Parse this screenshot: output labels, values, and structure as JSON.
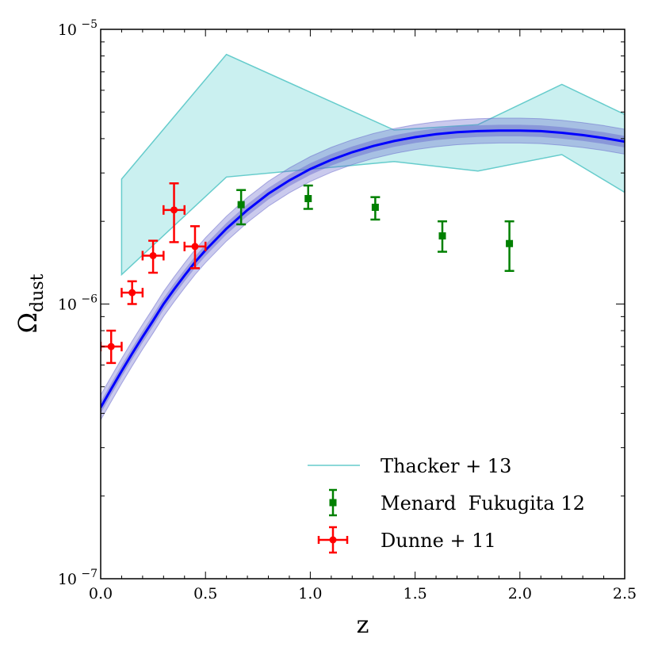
{
  "chart_data": {
    "type": "scatter",
    "title": "",
    "xlabel": "z",
    "ylabel": {
      "main": "Ω",
      "sub": "dust"
    },
    "xscale": "linear",
    "yscale": "log",
    "xlim": [
      0,
      2.5
    ],
    "ylim": [
      1e-07,
      1e-05
    ],
    "xticks": [
      {
        "value": 0.0,
        "label": "0.0"
      },
      {
        "value": 0.5,
        "label": "0.5"
      },
      {
        "value": 1.0,
        "label": "1.0"
      },
      {
        "value": 1.5,
        "label": "1.5"
      },
      {
        "value": 2.0,
        "label": "2.0"
      },
      {
        "value": 2.5,
        "label": "2.5"
      }
    ],
    "yticks": [
      {
        "value": 1e-07,
        "base": "10",
        "exp": "−7"
      },
      {
        "value": 1e-06,
        "base": "10",
        "exp": "−6"
      },
      {
        "value": 1e-05,
        "base": "10",
        "exp": "−5"
      }
    ],
    "model": {
      "color": "#0000ff",
      "band_color": "#6666cc",
      "z": [
        0.0,
        0.05,
        0.1,
        0.15,
        0.2,
        0.25,
        0.3,
        0.35,
        0.4,
        0.45,
        0.5,
        0.6,
        0.7,
        0.8,
        0.9,
        1.0,
        1.1,
        1.2,
        1.3,
        1.4,
        1.5,
        1.6,
        1.7,
        1.8,
        1.9,
        2.0,
        2.1,
        2.2,
        2.3,
        2.4,
        2.5
      ],
      "median": [
        4.2e-07,
        4.9e-07,
        5.7e-07,
        6.6e-07,
        7.6e-07,
        8.7e-07,
        1e-06,
        1.13e-06,
        1.27e-06,
        1.42e-06,
        1.57e-06,
        1.88e-06,
        2.2e-06,
        2.52e-06,
        2.82e-06,
        3.1e-06,
        3.35e-06,
        3.57e-06,
        3.76e-06,
        3.92e-06,
        4.05e-06,
        4.15e-06,
        4.22e-06,
        4.26e-06,
        4.28e-06,
        4.28e-06,
        4.26e-06,
        4.2e-06,
        4.12e-06,
        4.02e-06,
        3.9e-06
      ],
      "inner_factor": 1.05,
      "outer_factor": 1.11
    },
    "series": [
      {
        "name": "Thacker + 13",
        "kind": "band",
        "color": "#66cccc",
        "fill": "#caf0f0",
        "x": [
          0.1,
          0.6,
          1.4,
          1.8,
          2.2,
          2.5
        ],
        "lower": [
          1.28e-06,
          2.9e-06,
          3.3e-06,
          3.05e-06,
          3.5e-06,
          2.55e-06
        ],
        "upper": [
          2.85e-06,
          8.1e-06,
          4.3e-06,
          4.5e-06,
          6.3e-06,
          4.9e-06
        ]
      },
      {
        "name": "Menard  Fukugita 12",
        "kind": "errorbar",
        "marker": "square",
        "color": "#008000",
        "points": [
          {
            "x": 0.67,
            "y": 2.3e-06,
            "ylo": 1.95e-06,
            "yhi": 2.6e-06
          },
          {
            "x": 0.99,
            "y": 2.42e-06,
            "ylo": 2.22e-06,
            "yhi": 2.7e-06
          },
          {
            "x": 1.31,
            "y": 2.25e-06,
            "ylo": 2.03e-06,
            "yhi": 2.45e-06
          },
          {
            "x": 1.63,
            "y": 1.77e-06,
            "ylo": 1.55e-06,
            "yhi": 2e-06
          },
          {
            "x": 1.95,
            "y": 1.66e-06,
            "ylo": 1.32e-06,
            "yhi": 2e-06
          }
        ]
      },
      {
        "name": "Dunne + 11",
        "kind": "errorbar",
        "marker": "circle",
        "color": "#ff0000",
        "points": [
          {
            "x": 0.05,
            "y": 7e-07,
            "xerr": 0.05,
            "ylo": 6.1e-07,
            "yhi": 8e-07
          },
          {
            "x": 0.15,
            "y": 1.1e-06,
            "xerr": 0.05,
            "ylo": 1e-06,
            "yhi": 1.21e-06
          },
          {
            "x": 0.25,
            "y": 1.5e-06,
            "xerr": 0.05,
            "ylo": 1.3e-06,
            "yhi": 1.7e-06
          },
          {
            "x": 0.35,
            "y": 2.2e-06,
            "xerr": 0.05,
            "ylo": 1.68e-06,
            "yhi": 2.75e-06
          },
          {
            "x": 0.45,
            "y": 1.62e-06,
            "xerr": 0.05,
            "ylo": 1.35e-06,
            "yhi": 1.92e-06
          }
        ]
      }
    ],
    "legend": {
      "position": "lower-right",
      "entries": [
        "Thacker + 13",
        "Menard  Fukugita 12",
        "Dunne + 11"
      ]
    }
  }
}
